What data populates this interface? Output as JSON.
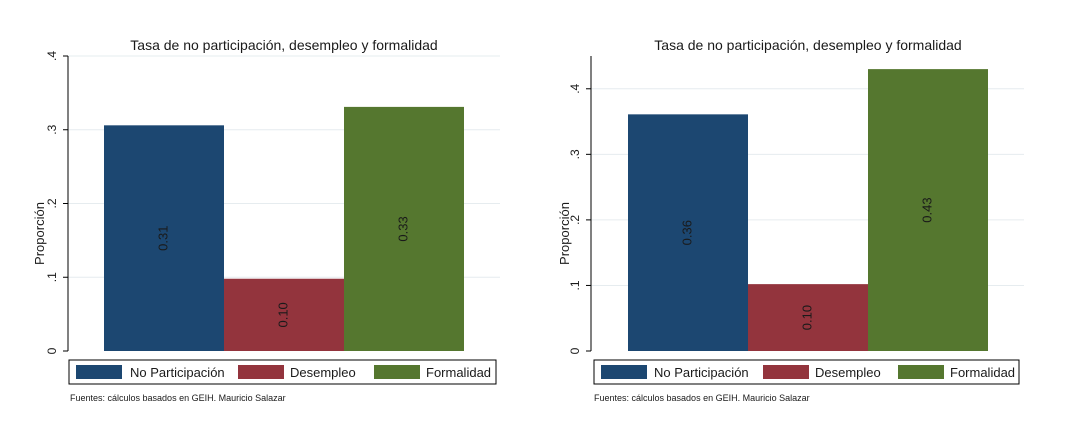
{
  "colors": {
    "no_participacion": "#1c4771",
    "desempleo": "#93343d",
    "formalidad": "#55772f",
    "gridline": "#e6ecef",
    "axis": "#000000",
    "label_text": "#ffffff"
  },
  "chart_data": [
    {
      "type": "bar",
      "title": "Tasa de no participación, desempleo y formalidad",
      "ylabel": "Proporción",
      "xlabel": "",
      "ylim": [
        0,
        0.4
      ],
      "yticks": [
        0,
        0.1,
        0.2,
        0.3,
        0.4
      ],
      "ytick_labels": [
        "0",
        ".1",
        ".2",
        ".3",
        ".4"
      ],
      "categories": [
        "No Participación",
        "Desempleo",
        "Formalidad"
      ],
      "values": [
        0.306,
        0.098,
        0.331
      ],
      "value_labels": [
        "0.31",
        "0.10",
        "0.33"
      ],
      "legend": [
        "No Participación",
        "Desempleo",
        "Formalidad"
      ],
      "legend_position": "bottom",
      "grid": true,
      "source": "Fuentes: cálculos basados en GEIH. Mauricio Salazar"
    },
    {
      "type": "bar",
      "title": "Tasa de no participación, desempleo y formalidad",
      "ylabel": "Proporción",
      "xlabel": "",
      "ylim": [
        0,
        0.45
      ],
      "yticks": [
        0,
        0.1,
        0.2,
        0.3,
        0.4
      ],
      "ytick_labels": [
        "0",
        ".1",
        ".2",
        ".3",
        ".4"
      ],
      "categories": [
        "No Participación",
        "Desempleo",
        "Formalidad"
      ],
      "values": [
        0.361,
        0.102,
        0.43
      ],
      "value_labels": [
        "0.36",
        "0.10",
        "0.43"
      ],
      "legend": [
        "No Participación",
        "Desempleo",
        "Formalidad"
      ],
      "legend_position": "bottom",
      "grid": true,
      "source": "Fuentes: cálculos basados en GEIH. Mauricio Salazar"
    }
  ]
}
